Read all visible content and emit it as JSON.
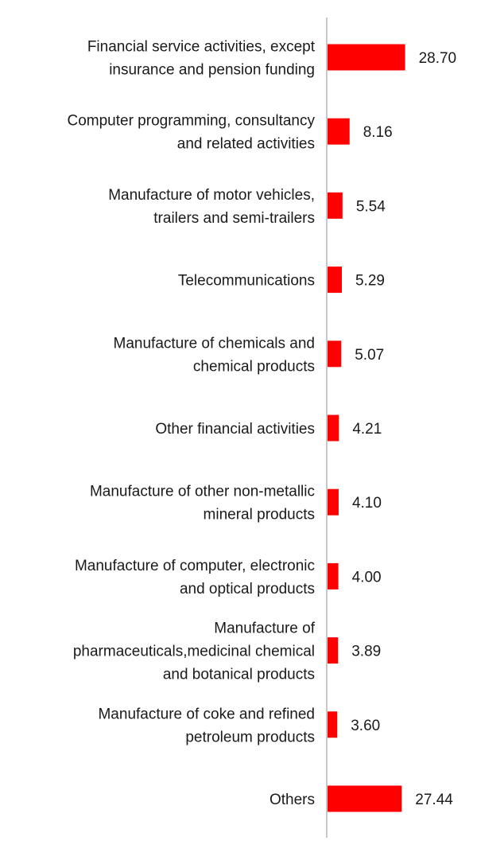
{
  "chart_data": {
    "type": "bar",
    "orientation": "horizontal",
    "bar_color": "#ff0000",
    "axis_color": "#c8c8c8",
    "grid": false,
    "legend": "none",
    "categories": [
      [
        "Financial service activities, except",
        "insurance and pension funding"
      ],
      [
        "Computer programming, consultancy",
        "and related activities"
      ],
      [
        "Manufacture of motor vehicles,",
        "trailers and semi-trailers"
      ],
      [
        "Telecommunications"
      ],
      [
        "Manufacture of chemicals and",
        "chemical products"
      ],
      [
        "Other financial activities"
      ],
      [
        "Manufacture of other non-metallic",
        "mineral products"
      ],
      [
        "Manufacture of computer, electronic",
        "and optical products"
      ],
      [
        "Manufacture of",
        "pharmaceuticals,medicinal chemical",
        "and botanical products"
      ],
      [
        "Manufacture of coke and refined",
        "petroleum products"
      ],
      [
        "Others"
      ]
    ],
    "values": [
      28.7,
      8.16,
      5.54,
      5.29,
      5.07,
      4.21,
      4.1,
      4.0,
      3.89,
      3.6,
      27.44
    ],
    "value_labels": [
      "28.70",
      "8.16",
      "5.54",
      "5.29",
      "5.07",
      "4.21",
      "4.10",
      "4.00",
      "3.89",
      "3.60",
      "27.44"
    ]
  }
}
